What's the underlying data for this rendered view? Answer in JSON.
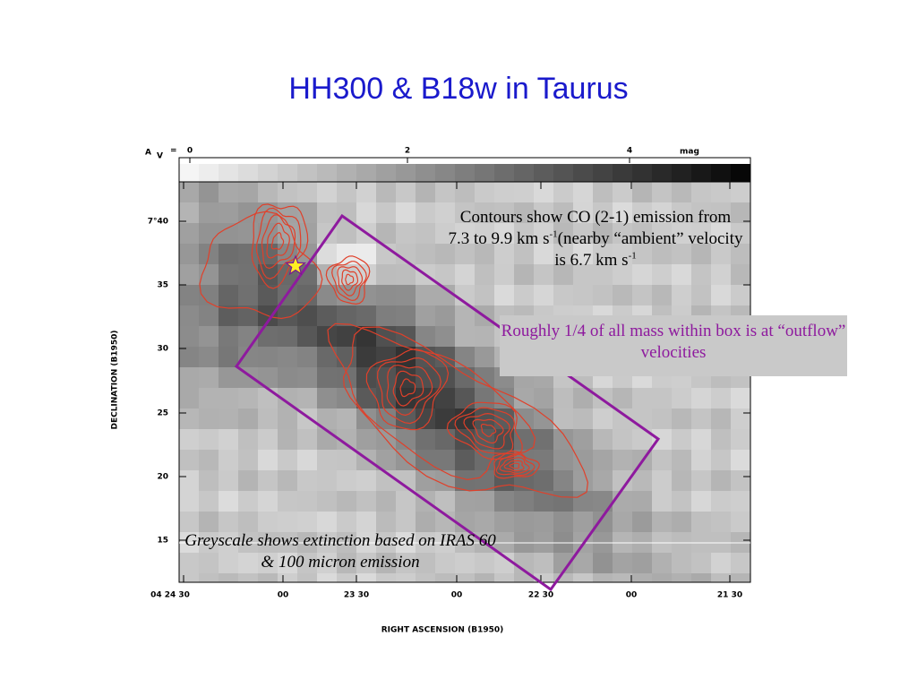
{
  "title": "HH300 & B18w in Taurus",
  "colorbar": {
    "label": "A",
    "label_sub": "V",
    "equals": "=",
    "ticks": [
      "0",
      "2",
      "4"
    ],
    "unit": "mag"
  },
  "axes": {
    "y_title": "DECLINATION (B1950)",
    "x_title": "RIGHT ASCENSION (B1950)",
    "y_ticks": [
      "7°40",
      "35",
      "30",
      "25",
      "20",
      "15"
    ],
    "x_ticks": [
      "04 24 30",
      "00",
      "23 30",
      "00",
      "22 30",
      "00",
      "21 30"
    ]
  },
  "annotations": {
    "contours": [
      "Contours show CO (2-1) emission from 7.3 to 9.9 km s",
      "-1",
      "(nearby “ambient” velocity is 6.7 km s",
      "-1"
    ],
    "mass": "Roughly 1/4 of all mass within box is at “outflow” velocities",
    "greyscale": "Greyscale shows extinction based on IRAS 60 & 100 micron emission"
  }
}
